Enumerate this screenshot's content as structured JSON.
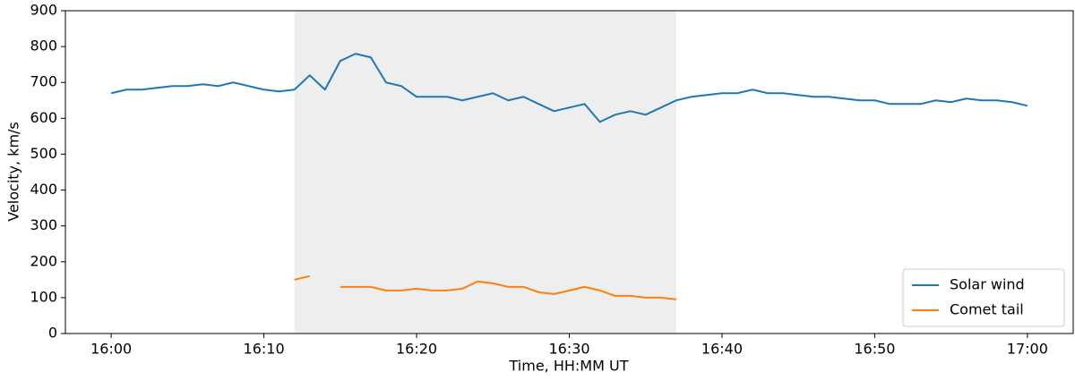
{
  "chart_data": {
    "type": "line",
    "xlabel": "Time, HH:MM UT",
    "ylabel": "Velocity, km/s",
    "x": [
      "16:00",
      "16:01",
      "16:02",
      "16:03",
      "16:04",
      "16:05",
      "16:06",
      "16:07",
      "16:08",
      "16:09",
      "16:10",
      "16:11",
      "16:12",
      "16:13",
      "16:14",
      "16:15",
      "16:16",
      "16:17",
      "16:18",
      "16:19",
      "16:20",
      "16:21",
      "16:22",
      "16:23",
      "16:24",
      "16:25",
      "16:26",
      "16:27",
      "16:28",
      "16:29",
      "16:30",
      "16:31",
      "16:32",
      "16:33",
      "16:34",
      "16:35",
      "16:36",
      "16:37",
      "16:38",
      "16:39",
      "16:40",
      "16:41",
      "16:42",
      "16:43",
      "16:44",
      "16:45",
      "16:46",
      "16:47",
      "16:48",
      "16:49",
      "16:50",
      "16:51",
      "16:52",
      "16:53",
      "16:54",
      "16:55",
      "16:56",
      "16:57",
      "16:58",
      "16:59",
      "17:00"
    ],
    "series": [
      {
        "name": "Solar wind",
        "color": "#1f77b4",
        "values": [
          670,
          680,
          680,
          685,
          690,
          690,
          695,
          690,
          700,
          690,
          680,
          675,
          680,
          720,
          680,
          760,
          780,
          770,
          700,
          690,
          660,
          660,
          660,
          650,
          660,
          670,
          650,
          660,
          640,
          620,
          630,
          640,
          590,
          610,
          620,
          610,
          630,
          650,
          660,
          665,
          670,
          670,
          680,
          670,
          670,
          665,
          660,
          660,
          655,
          650,
          650,
          640,
          640,
          640,
          650,
          645,
          655,
          650,
          650,
          645,
          635
        ]
      },
      {
        "name": "Comet tail",
        "color": "#ff7f0e",
        "values": [
          null,
          null,
          null,
          null,
          null,
          null,
          null,
          null,
          null,
          null,
          null,
          null,
          150,
          160,
          null,
          130,
          130,
          130,
          120,
          120,
          125,
          120,
          120,
          125,
          145,
          140,
          130,
          130,
          115,
          110,
          120,
          130,
          120,
          105,
          105,
          100,
          100,
          95,
          null,
          null,
          null,
          null,
          null,
          null,
          null,
          null,
          null,
          null,
          null,
          null,
          null,
          null,
          null,
          null,
          null,
          null,
          null,
          null,
          null,
          null,
          null
        ]
      }
    ],
    "xlim": [
      "15:57",
      "17:03"
    ],
    "xticks": [
      "16:00",
      "16:10",
      "16:20",
      "16:30",
      "16:40",
      "16:50",
      "17:00"
    ],
    "ylim": [
      0,
      900
    ],
    "yticks": [
      0,
      100,
      200,
      300,
      400,
      500,
      600,
      700,
      800,
      900
    ],
    "shaded_span": [
      "16:12",
      "16:37"
    ],
    "shade_color": "#eeeeee",
    "legend": "lower right"
  }
}
